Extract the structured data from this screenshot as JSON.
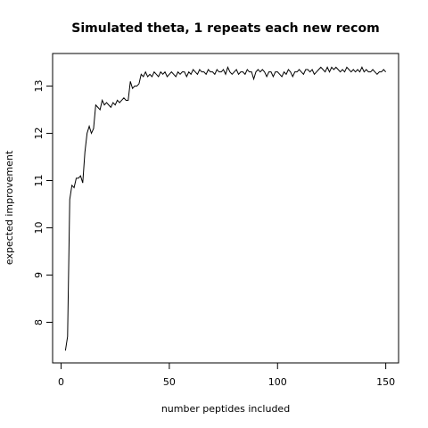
{
  "chart_data": {
    "type": "line",
    "title": "Simulated theta, 1 repeats each new recom",
    "x_label": "number peptides included",
    "y_label": "expected improvement",
    "color": "#000000",
    "xlim": [
      -3.92,
      155.92
    ],
    "xticks": [
      0,
      50,
      100,
      150
    ],
    "ylim": [
      7.14,
      13.69
    ],
    "yticks": [
      8,
      9,
      10,
      11,
      12,
      13
    ],
    "x": [
      2,
      3,
      4,
      5,
      6,
      7,
      8,
      9,
      10,
      11,
      12,
      13,
      14,
      15,
      16,
      17,
      18,
      19,
      20,
      21,
      22,
      23,
      24,
      25,
      26,
      27,
      28,
      29,
      30,
      31,
      32,
      33,
      34,
      35,
      36,
      37,
      38,
      39,
      40,
      41,
      42,
      43,
      44,
      45,
      46,
      47,
      48,
      49,
      50,
      51,
      52,
      53,
      54,
      55,
      56,
      57,
      58,
      59,
      60,
      61,
      62,
      63,
      64,
      65,
      66,
      67,
      68,
      69,
      70,
      71,
      72,
      73,
      74,
      75,
      76,
      77,
      78,
      79,
      80,
      81,
      82,
      83,
      84,
      85,
      86,
      87,
      88,
      89,
      90,
      91,
      92,
      93,
      94,
      95,
      96,
      97,
      98,
      99,
      100,
      101,
      102,
      103,
      104,
      105,
      106,
      107,
      108,
      109,
      110,
      111,
      112,
      113,
      114,
      115,
      116,
      117,
      118,
      119,
      120,
      121,
      122,
      123,
      124,
      125,
      126,
      127,
      128,
      129,
      130,
      131,
      132,
      133,
      134,
      135,
      136,
      137,
      138,
      139,
      140,
      141,
      142,
      143,
      144,
      145,
      146,
      147,
      148,
      149,
      150
    ],
    "values": [
      7.4,
      7.7,
      10.6,
      10.9,
      10.85,
      11.05,
      11.05,
      11.1,
      10.95,
      11.6,
      12.0,
      12.15,
      12.0,
      12.1,
      12.6,
      12.55,
      12.5,
      12.7,
      12.6,
      12.65,
      12.6,
      12.55,
      12.65,
      12.6,
      12.7,
      12.65,
      12.7,
      12.75,
      12.7,
      12.7,
      13.1,
      12.95,
      13.0,
      13.0,
      13.05,
      13.25,
      13.2,
      13.3,
      13.2,
      13.25,
      13.2,
      13.3,
      13.25,
      13.2,
      13.3,
      13.25,
      13.3,
      13.2,
      13.25,
      13.3,
      13.25,
      13.2,
      13.3,
      13.25,
      13.3,
      13.3,
      13.2,
      13.3,
      13.25,
      13.35,
      13.3,
      13.25,
      13.35,
      13.3,
      13.3,
      13.25,
      13.35,
      13.3,
      13.3,
      13.25,
      13.35,
      13.3,
      13.3,
      13.35,
      13.25,
      13.4,
      13.3,
      13.25,
      13.3,
      13.35,
      13.25,
      13.3,
      13.3,
      13.25,
      13.35,
      13.3,
      13.3,
      13.15,
      13.3,
      13.35,
      13.3,
      13.35,
      13.3,
      13.2,
      13.3,
      13.3,
      13.2,
      13.3,
      13.3,
      13.25,
      13.2,
      13.3,
      13.25,
      13.35,
      13.3,
      13.2,
      13.3,
      13.3,
      13.35,
      13.3,
      13.25,
      13.35,
      13.35,
      13.3,
      13.35,
      13.25,
      13.3,
      13.35,
      13.4,
      13.35,
      13.3,
      13.4,
      13.3,
      13.4,
      13.35,
      13.4,
      13.35,
      13.3,
      13.35,
      13.3,
      13.4,
      13.35,
      13.3,
      13.35,
      13.3,
      13.35,
      13.3,
      13.4,
      13.3,
      13.35,
      13.3,
      13.3,
      13.35,
      13.3,
      13.25,
      13.3,
      13.3,
      13.35,
      13.3
    ]
  }
}
